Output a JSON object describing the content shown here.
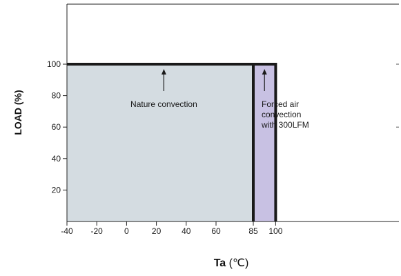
{
  "chart_data": {
    "type": "area",
    "title": "",
    "xlabel": "Ta",
    "xlabel_unit": "(℃)",
    "ylabel": "LOAD (%)",
    "xlim": [
      -40,
      100
    ],
    "ylim": [
      0,
      120
    ],
    "x_ticks": [
      -40,
      -20,
      0,
      20,
      40,
      60,
      85,
      100
    ],
    "y_ticks": [
      20,
      40,
      60,
      80,
      100
    ],
    "grid": false,
    "regions": [
      {
        "name": "Nature convection",
        "x_range": [
          -40,
          85
        ],
        "load": 100,
        "fill": "#d4dce1",
        "label_lines": [
          "Nature convection"
        ],
        "label_anchor": [
          25,
          85
        ],
        "arrow_x": 25
      },
      {
        "name": "Forced air convection with 300LFM",
        "x_range": [
          85,
          100
        ],
        "load": 100,
        "fill": "#c8c1e3",
        "label_lines": [
          "Forced air",
          "convection",
          "with 300LFM"
        ],
        "label_anchor": [
          92.5,
          85
        ],
        "arrow_x": 92.5
      }
    ],
    "curve": {
      "color": "#1a1a1a",
      "points": [
        [
          -40,
          100
        ],
        [
          85,
          100
        ],
        [
          100,
          100
        ],
        [
          100,
          0
        ]
      ]
    },
    "boundary": {
      "x": 85,
      "color": "#1a1a1a"
    }
  }
}
